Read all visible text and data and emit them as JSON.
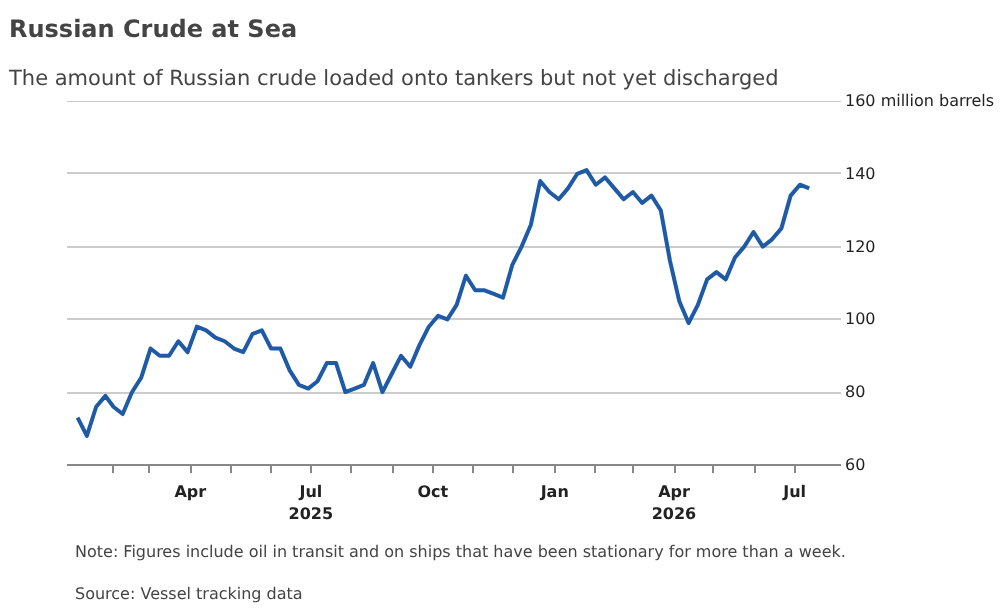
{
  "chart_data": {
    "type": "line",
    "title": "Russian Crude at Sea",
    "subtitle": "The amount of Russian crude loaded onto tankers but not yet discharged",
    "annotations": [
      "Note: Figures include oil in transit and on ships that have been stationary for more than a week.",
      "Source: Vessel tracking data"
    ],
    "x": [
      "2025-01-06",
      "2025-01-13",
      "2025-01-20",
      "2025-01-27",
      "2025-02-02",
      "2025-02-09",
      "2025-02-16",
      "2025-02-23",
      "2025-03-02",
      "2025-03-09",
      "2025-03-16",
      "2025-03-23",
      "2025-03-30",
      "2025-04-06",
      "2025-04-13",
      "2025-04-20",
      "2025-04-27",
      "2025-05-04",
      "2025-05-11",
      "2025-05-18",
      "2025-05-25",
      "2025-06-01",
      "2025-06-08",
      "2025-06-15",
      "2025-06-22",
      "2025-06-29",
      "2025-07-06",
      "2025-07-13",
      "2025-07-20",
      "2025-07-27",
      "2025-08-03",
      "2025-08-10",
      "2025-08-17",
      "2025-08-24",
      "2025-08-31",
      "2025-09-07",
      "2025-09-14",
      "2025-09-21",
      "2025-09-28",
      "2025-10-05",
      "2025-10-12",
      "2025-10-19",
      "2025-10-26",
      "2025-11-02",
      "2025-11-09",
      "2025-11-16",
      "2025-11-23",
      "2025-11-30",
      "2025-12-07",
      "2025-12-14",
      "2025-12-21",
      "2025-12-28",
      "2026-01-04",
      "2026-01-11",
      "2026-01-18",
      "2026-01-25",
      "2026-02-01",
      "2026-02-08",
      "2026-02-15",
      "2026-02-22",
      "2026-03-01",
      "2026-03-08",
      "2026-03-15",
      "2026-03-22",
      "2026-03-29",
      "2026-04-05",
      "2026-04-12",
      "2026-04-19",
      "2026-04-26",
      "2026-05-03",
      "2026-05-10",
      "2026-05-17",
      "2026-05-24",
      "2026-05-31",
      "2026-06-07",
      "2026-06-14",
      "2026-06-21",
      "2026-06-28",
      "2026-07-05",
      "2026-07-12"
    ],
    "series": [
      {
        "color": "#1f5aa6",
        "values": [
          73,
          68,
          76,
          79,
          76,
          74,
          80,
          84,
          92,
          90,
          90,
          94,
          91,
          98,
          97,
          95,
          94,
          92,
          91,
          96,
          97,
          92,
          92,
          86,
          82,
          81,
          83,
          88,
          88,
          80,
          81,
          82,
          88,
          80,
          85,
          90,
          87,
          93,
          98,
          101,
          100,
          104,
          112,
          108,
          108,
          107,
          106,
          115,
          120,
          126,
          138,
          135,
          133,
          136,
          140,
          141,
          137,
          139,
          136,
          133,
          135,
          132,
          134,
          130,
          116,
          105,
          99,
          104,
          111,
          113,
          111,
          117,
          120,
          124,
          120,
          122,
          125,
          134,
          137,
          136
        ]
      }
    ],
    "xlim": [
      "2024-12-29",
      "2026-08-05"
    ],
    "xticks": [
      {
        "value": "2025-02-01",
        "label": null
      },
      {
        "value": "2025-03-01",
        "label": null
      },
      {
        "value": "2025-04-01",
        "label": "Apr"
      },
      {
        "value": "2025-05-01",
        "label": null
      },
      {
        "value": "2025-06-01",
        "label": null
      },
      {
        "value": "2025-07-01",
        "label": "Jul\n2025"
      },
      {
        "value": "2025-08-01",
        "label": null
      },
      {
        "value": "2025-09-01",
        "label": null
      },
      {
        "value": "2025-10-01",
        "label": "Oct"
      },
      {
        "value": "2025-11-01",
        "label": null
      },
      {
        "value": "2025-12-01",
        "label": null
      },
      {
        "value": "2026-01-01",
        "label": "Jan"
      },
      {
        "value": "2026-02-01",
        "label": null
      },
      {
        "value": "2026-03-01",
        "label": null
      },
      {
        "value": "2026-04-01",
        "label": "Apr\n2026"
      },
      {
        "value": "2026-05-01",
        "label": null
      },
      {
        "value": "2026-06-01",
        "label": null
      },
      {
        "value": "2026-07-01",
        "label": "Jul"
      }
    ],
    "ylim": [
      60,
      160
    ],
    "yticks": [
      60,
      80,
      100,
      120,
      140,
      {
        "value": 160,
        "label": "160 million barrels"
      }
    ],
    "grid": "y",
    "line_style": "solid"
  }
}
